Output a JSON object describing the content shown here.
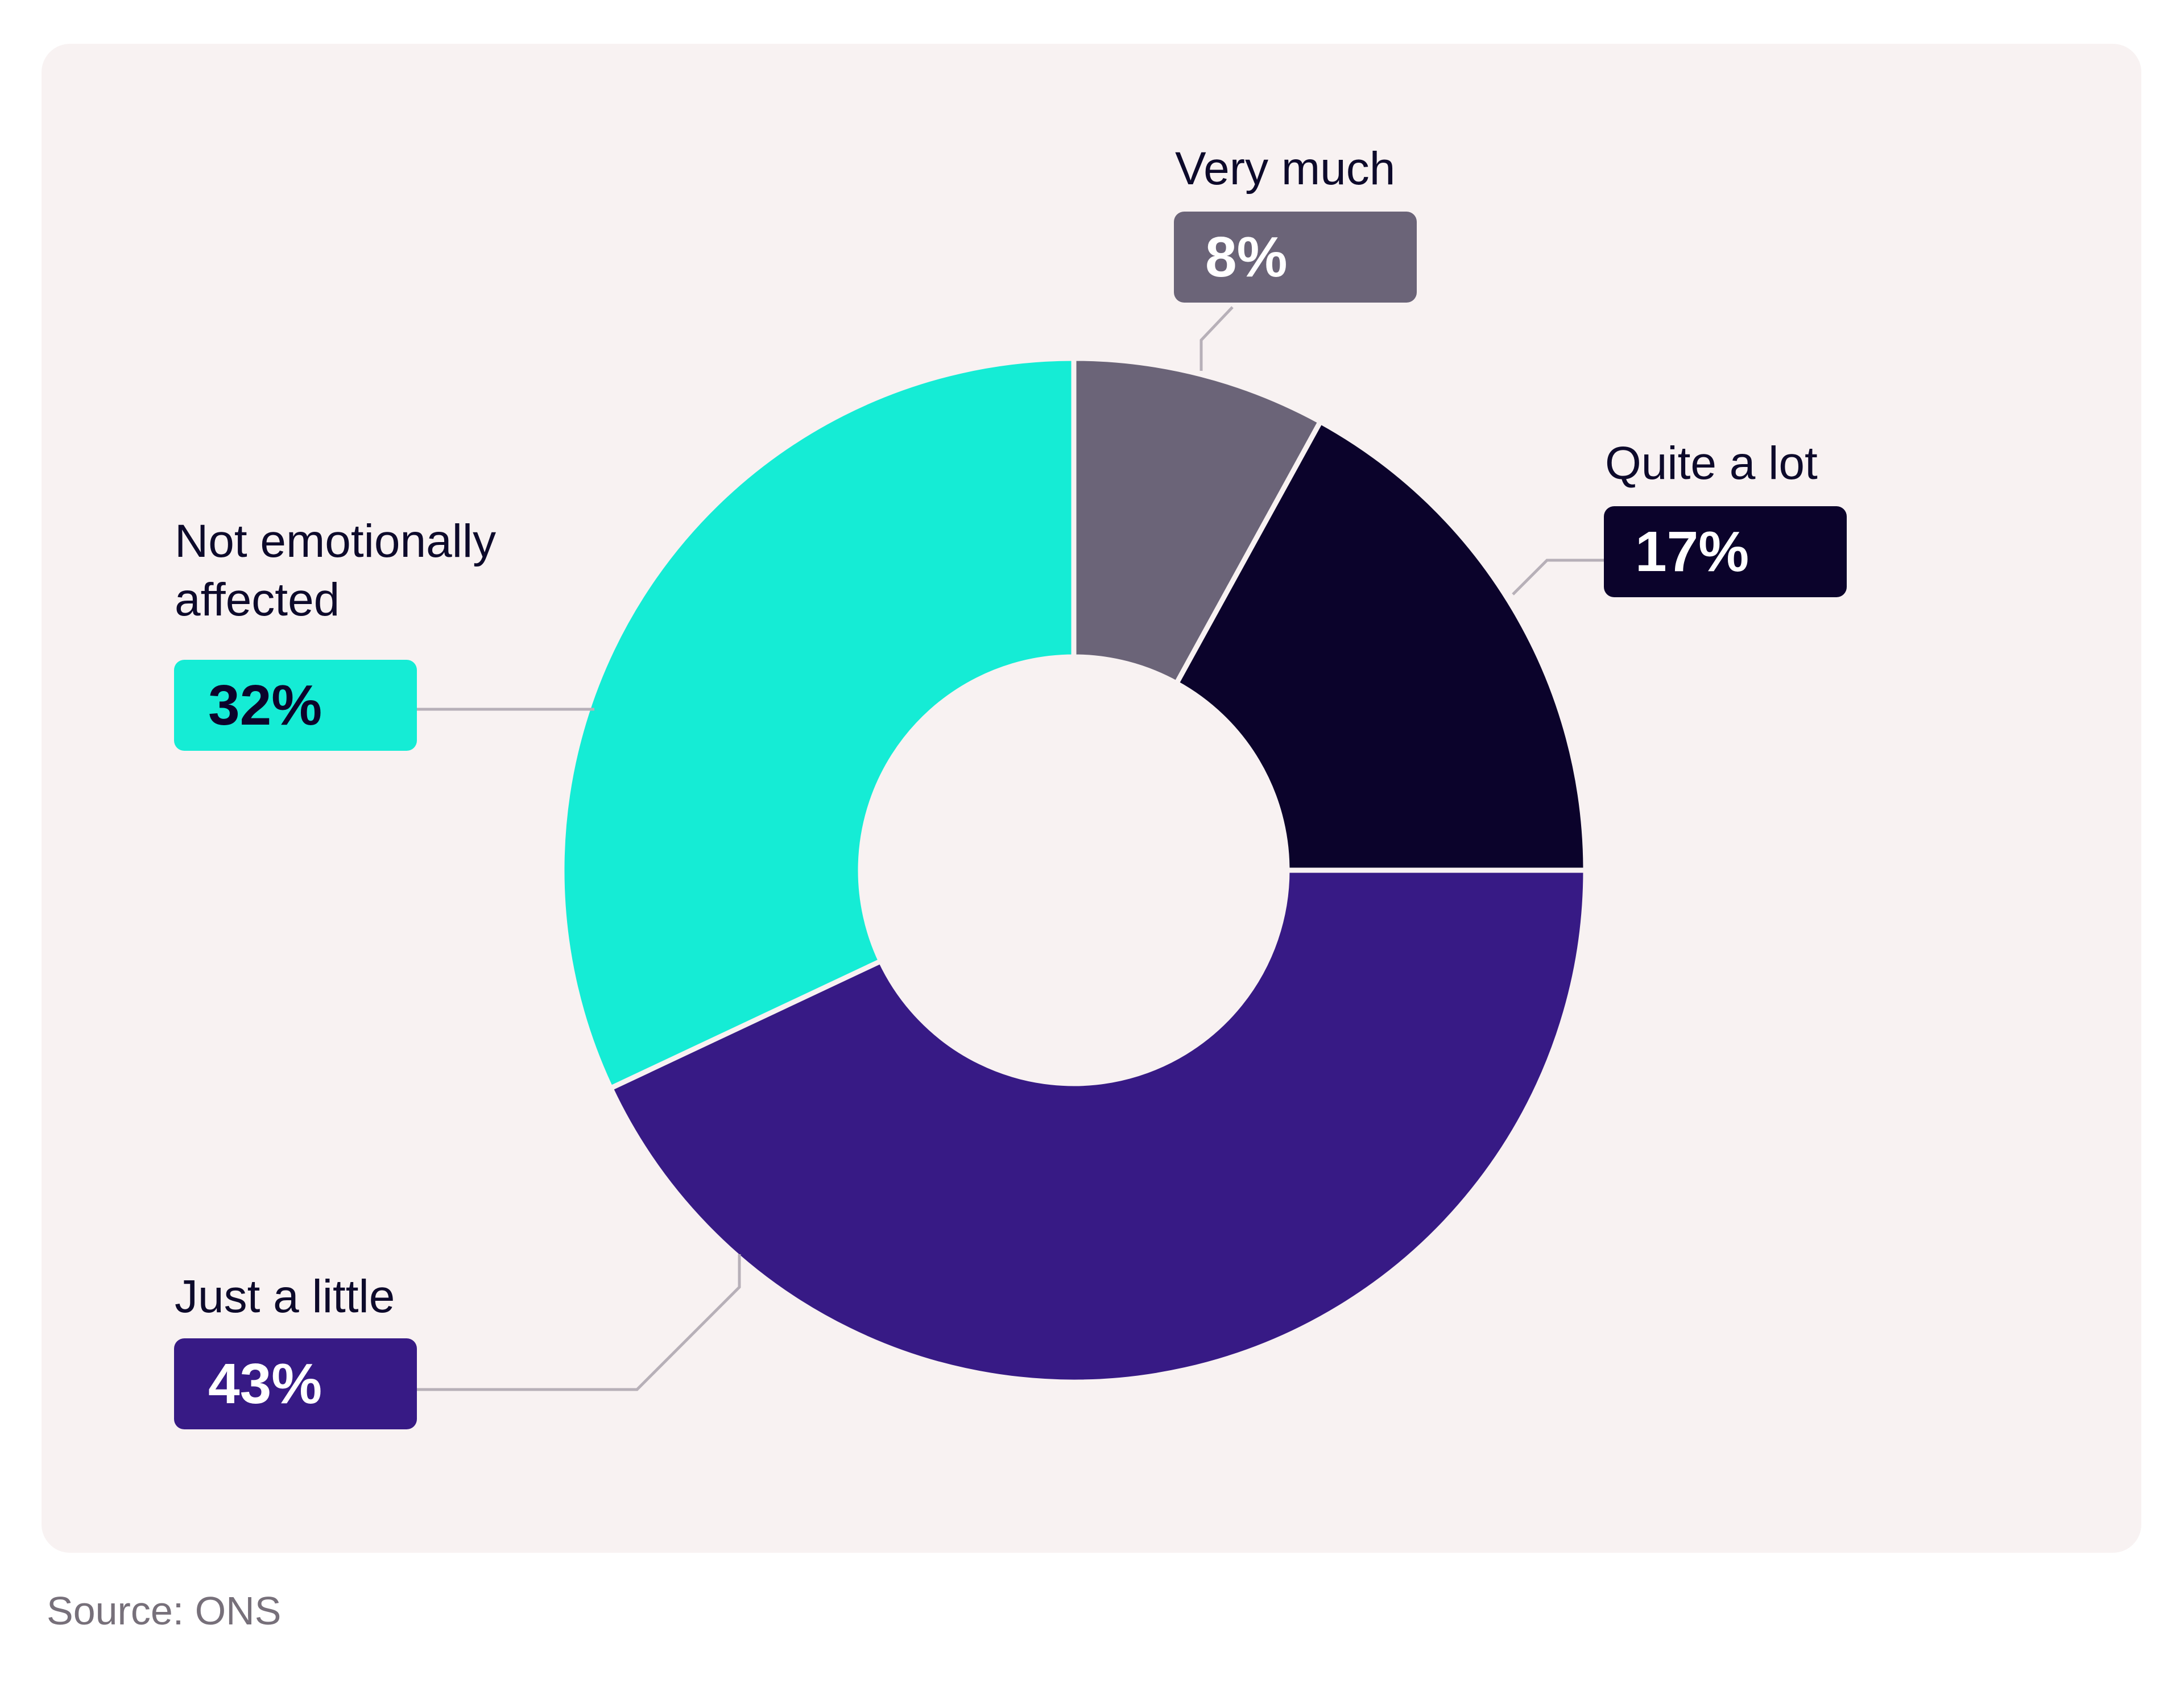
{
  "chart_data": {
    "type": "pie",
    "style": "donut",
    "title": "",
    "categories": [
      "Very much",
      "Quite a lot",
      "Just a little",
      "Not emotionally affected"
    ],
    "values": [
      8,
      17,
      43,
      32
    ],
    "value_labels": [
      "8%",
      "17%",
      "43%",
      "32%"
    ],
    "colors": [
      "#6b6478",
      "#0b032b",
      "#371a85",
      "#15ecd5"
    ],
    "label_text_colors": [
      "#ffffff",
      "#ffffff",
      "#ffffff",
      "#0b032b"
    ],
    "start_angle_deg": 0,
    "direction": "clockwise"
  },
  "source": "Source: ONS",
  "colors": {
    "card_background": "#f8f2f2",
    "leader_line": "#b7b0b8",
    "separator": "#f8f2f2"
  }
}
